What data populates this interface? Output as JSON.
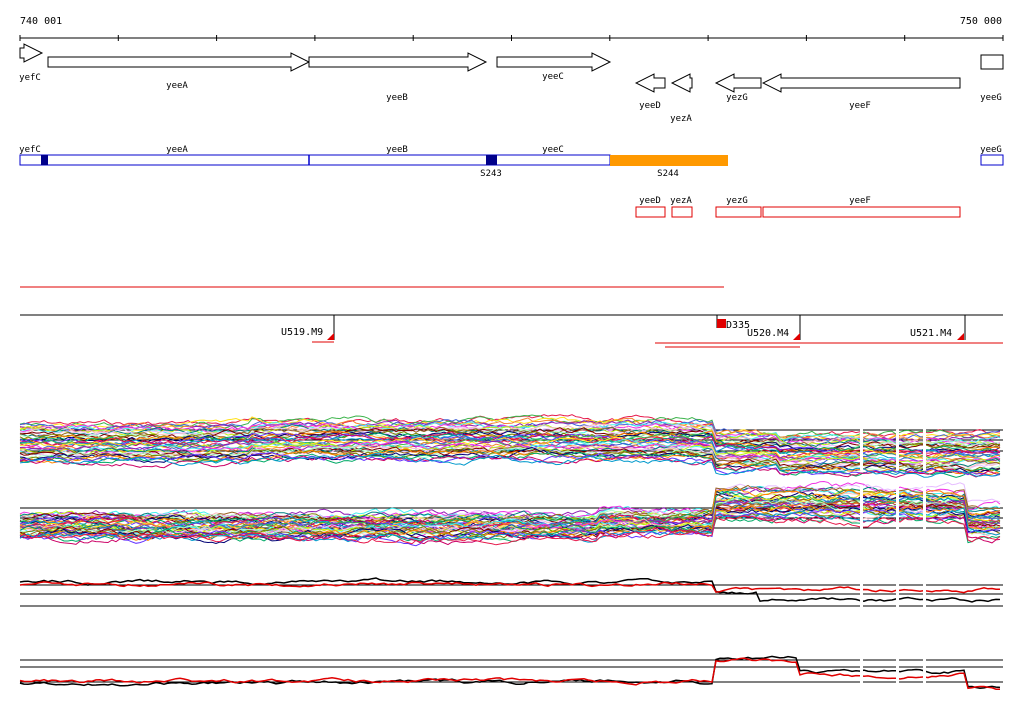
{
  "coordinates": {
    "start_label": "740 001",
    "end_label": "750 000"
  },
  "genes": [
    {
      "name": "yefC",
      "strand": "+"
    },
    {
      "name": "yeeA",
      "strand": "+"
    },
    {
      "name": "yeeB",
      "strand": "+"
    },
    {
      "name": "yeeC",
      "strand": "+"
    },
    {
      "name": "yeeD",
      "strand": "-"
    },
    {
      "name": "yezA",
      "strand": "-"
    },
    {
      "name": "yezG",
      "strand": "-"
    },
    {
      "name": "yeeF",
      "strand": "-"
    },
    {
      "name": "yeeG",
      "strand": "+"
    }
  ],
  "segment_track": {
    "gene_labels": [
      "yefC",
      "yeeA",
      "yeeB",
      "yeeC",
      "yeeG"
    ],
    "segments": [
      "S243",
      "S244"
    ]
  },
  "red_gene_track": {
    "labels": [
      "yeeD",
      "yezA",
      "yezG",
      "yeeF"
    ]
  },
  "transcription_units": {
    "labels": [
      "U519.M9",
      "D335",
      "U520.M4",
      "U521.M4"
    ]
  },
  "colors": {
    "gene_outline": "#000000",
    "segment_blue": "#0000cc",
    "segment_dark_blue": "#00008b",
    "segment_orange": "#ff9900",
    "gene_red": "#e00000",
    "expression_black": "#000000",
    "expression_red": "#e00000"
  }
}
